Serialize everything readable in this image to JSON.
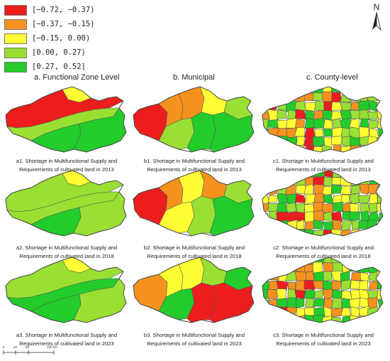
{
  "legend": [
    {
      "label": "[−0.72, −0.37)",
      "color": "#ee1d1d"
    },
    {
      "label": "[−0.37, −0.15)",
      "color": "#f5921e"
    },
    {
      "label": "[−0.15, 0.00)",
      "color": "#ffff33"
    },
    {
      "label": "[0.00, 0.27)",
      "color": "#99e032"
    },
    {
      "label": "[0.27, 0.52]",
      "color": "#22cc2a"
    }
  ],
  "north_label": "N",
  "columns": [
    {
      "label": "a.  Functional Zone Level"
    },
    {
      "label": "b.  Municipal"
    },
    {
      "label": "c.  County-level"
    }
  ],
  "maps": [
    {
      "id": "a1",
      "caption1": "a1. Shortage in Multifunctional Supply and",
      "caption2": "Requirements of cultivated land in 2013",
      "level": "zone",
      "zones": [
        "#ee1d1d",
        "#ffff33",
        "#99e032",
        "#22cc2a",
        "#22cc2a"
      ]
    },
    {
      "id": "b1",
      "caption1": "b1. Shortage in Multifunctional Supply and",
      "caption2": "Requirements of cultivated land in 2013",
      "level": "municipal",
      "zones": [
        "#ee1d1d",
        "#f5921e",
        "#ffff33",
        "#99e032",
        "#22cc2a"
      ]
    },
    {
      "id": "c1",
      "caption1": "c1. Shortage in Multifunctional Supply and",
      "caption2": "Requirements of cultivated land in 2013",
      "level": "county",
      "zones": [
        "#ee1d1d",
        "#f5921e",
        "#ffff33",
        "#99e032",
        "#22cc2a"
      ]
    },
    {
      "id": "a2",
      "caption1": "a2. Shortage in Multifunctional Supply and",
      "caption2": "Requirements of cultivated land in 2018",
      "level": "zone",
      "zones": [
        "#99e032",
        "#ffff33",
        "#99e032",
        "#22cc2a",
        "#99e032"
      ]
    },
    {
      "id": "b2",
      "caption1": "b2. Shortage in Multifunctional Supply and",
      "caption2": "Requirements of cultivated land in 2018",
      "level": "municipal",
      "zones": [
        "#ee1d1d",
        "#f5921e",
        "#ffff33",
        "#99e032",
        "#22cc2a"
      ]
    },
    {
      "id": "c2",
      "caption1": "c2. Shortage in Multifunctional Supply and",
      "caption2": "Requirements of cultivated land in 2018",
      "level": "county",
      "zones": [
        "#ee1d1d",
        "#f5921e",
        "#ffff33",
        "#99e032",
        "#22cc2a"
      ]
    },
    {
      "id": "a3",
      "caption1": "a3. Shortage in Multifunctional Supply and",
      "caption2": "Requirements of cultivated land in 2023",
      "level": "zone",
      "zones": [
        "#99e032",
        "#ffff33",
        "#22cc2a",
        "#22cc2a",
        "#99e032"
      ]
    },
    {
      "id": "b3",
      "caption1": "b3. Shortage in Multifunctional Supply and",
      "caption2": "Requirements of cultivated land in 2023",
      "level": "municipal",
      "zones": [
        "#f5921e",
        "#ffff33",
        "#99e032",
        "#22cc2a",
        "#ee1d1d"
      ]
    },
    {
      "id": "c3",
      "caption1": "c3. Shortage in Multifunctional Supply and",
      "caption2": "Requirements of cultivated land in 2023",
      "level": "county",
      "zones": [
        "#ee1d1d",
        "#f5921e",
        "#ffff33",
        "#99e032",
        "#22cc2a"
      ]
    }
  ],
  "scale": {
    "ticks": [
      "0",
      "25",
      "50",
      "100 km"
    ]
  }
}
